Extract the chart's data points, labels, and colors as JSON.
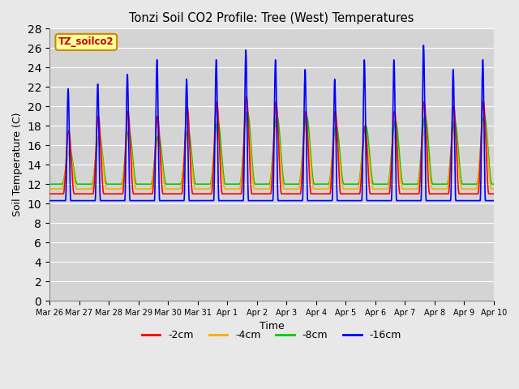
{
  "title": "Tonzi Soil CO2 Profile: Tree (West) Temperatures",
  "xlabel": "Time",
  "ylabel": "Soil Temperature (C)",
  "ylim": [
    0,
    28
  ],
  "yticks": [
    0,
    2,
    4,
    6,
    8,
    10,
    12,
    14,
    16,
    18,
    20,
    22,
    24,
    26,
    28
  ],
  "legend_label": "TZ_soilco2",
  "legend_items": [
    "-2cm",
    "-4cm",
    "-8cm",
    "-16cm"
  ],
  "legend_colors": [
    "#ff0000",
    "#ffaa00",
    "#00cc00",
    "#0000ff"
  ],
  "bg_color": "#e8e8e8",
  "plot_bg_color": "#d8d8d8",
  "num_days": 15,
  "day_labels": [
    "Mar 26",
    "Mar 27",
    "Mar 28",
    "Mar 29",
    "Mar 30",
    "Mar 31",
    "Apr 1",
    "Apr 2",
    "Apr 3",
    "Apr 4",
    "Apr 5",
    "Apr 6",
    "Apr 7",
    "Apr 8",
    "Apr 9",
    "Apr 10"
  ]
}
